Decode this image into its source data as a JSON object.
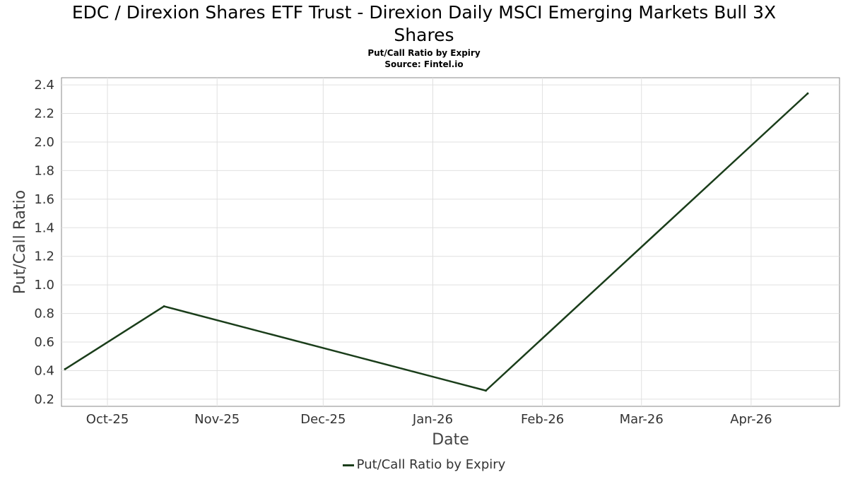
{
  "title_line1": "EDC / Direxion Shares ETF Trust - Direxion Daily MSCI Emerging Markets Bull 3X",
  "title_line2": "Shares",
  "subtitle": "Put/Call Ratio by Expiry",
  "source": "Source: Fintel.io",
  "chart_data": {
    "type": "line",
    "xlabel": "Date",
    "ylabel": "Put/Call Ratio",
    "xlim": [
      "2025-09-18",
      "2026-04-26"
    ],
    "ylim": [
      0.15,
      2.45
    ],
    "y_ticks": [
      0.2,
      0.4,
      0.6,
      0.8,
      1.0,
      1.2,
      1.4,
      1.6,
      1.8,
      2.0,
      2.2,
      2.4
    ],
    "x_ticks": [
      {
        "date": "2025-10-01",
        "label": "Oct-25"
      },
      {
        "date": "2025-11-01",
        "label": "Nov-25"
      },
      {
        "date": "2025-12-01",
        "label": "Dec-25"
      },
      {
        "date": "2026-01-01",
        "label": "Jan-26"
      },
      {
        "date": "2026-02-01",
        "label": "Feb-26"
      },
      {
        "date": "2026-03-01",
        "label": "Mar-26"
      },
      {
        "date": "2026-04-01",
        "label": "Apr-26"
      }
    ],
    "grid": true,
    "legend_position": "bottom",
    "series": [
      {
        "name": "Put/Call Ratio by Expiry",
        "color": "#1a3d1a",
        "points": [
          {
            "x": "2025-09-19",
            "y": 0.41
          },
          {
            "x": "2025-10-17",
            "y": 0.85
          },
          {
            "x": "2026-01-16",
            "y": 0.26
          },
          {
            "x": "2026-04-17",
            "y": 2.34
          }
        ]
      }
    ]
  }
}
